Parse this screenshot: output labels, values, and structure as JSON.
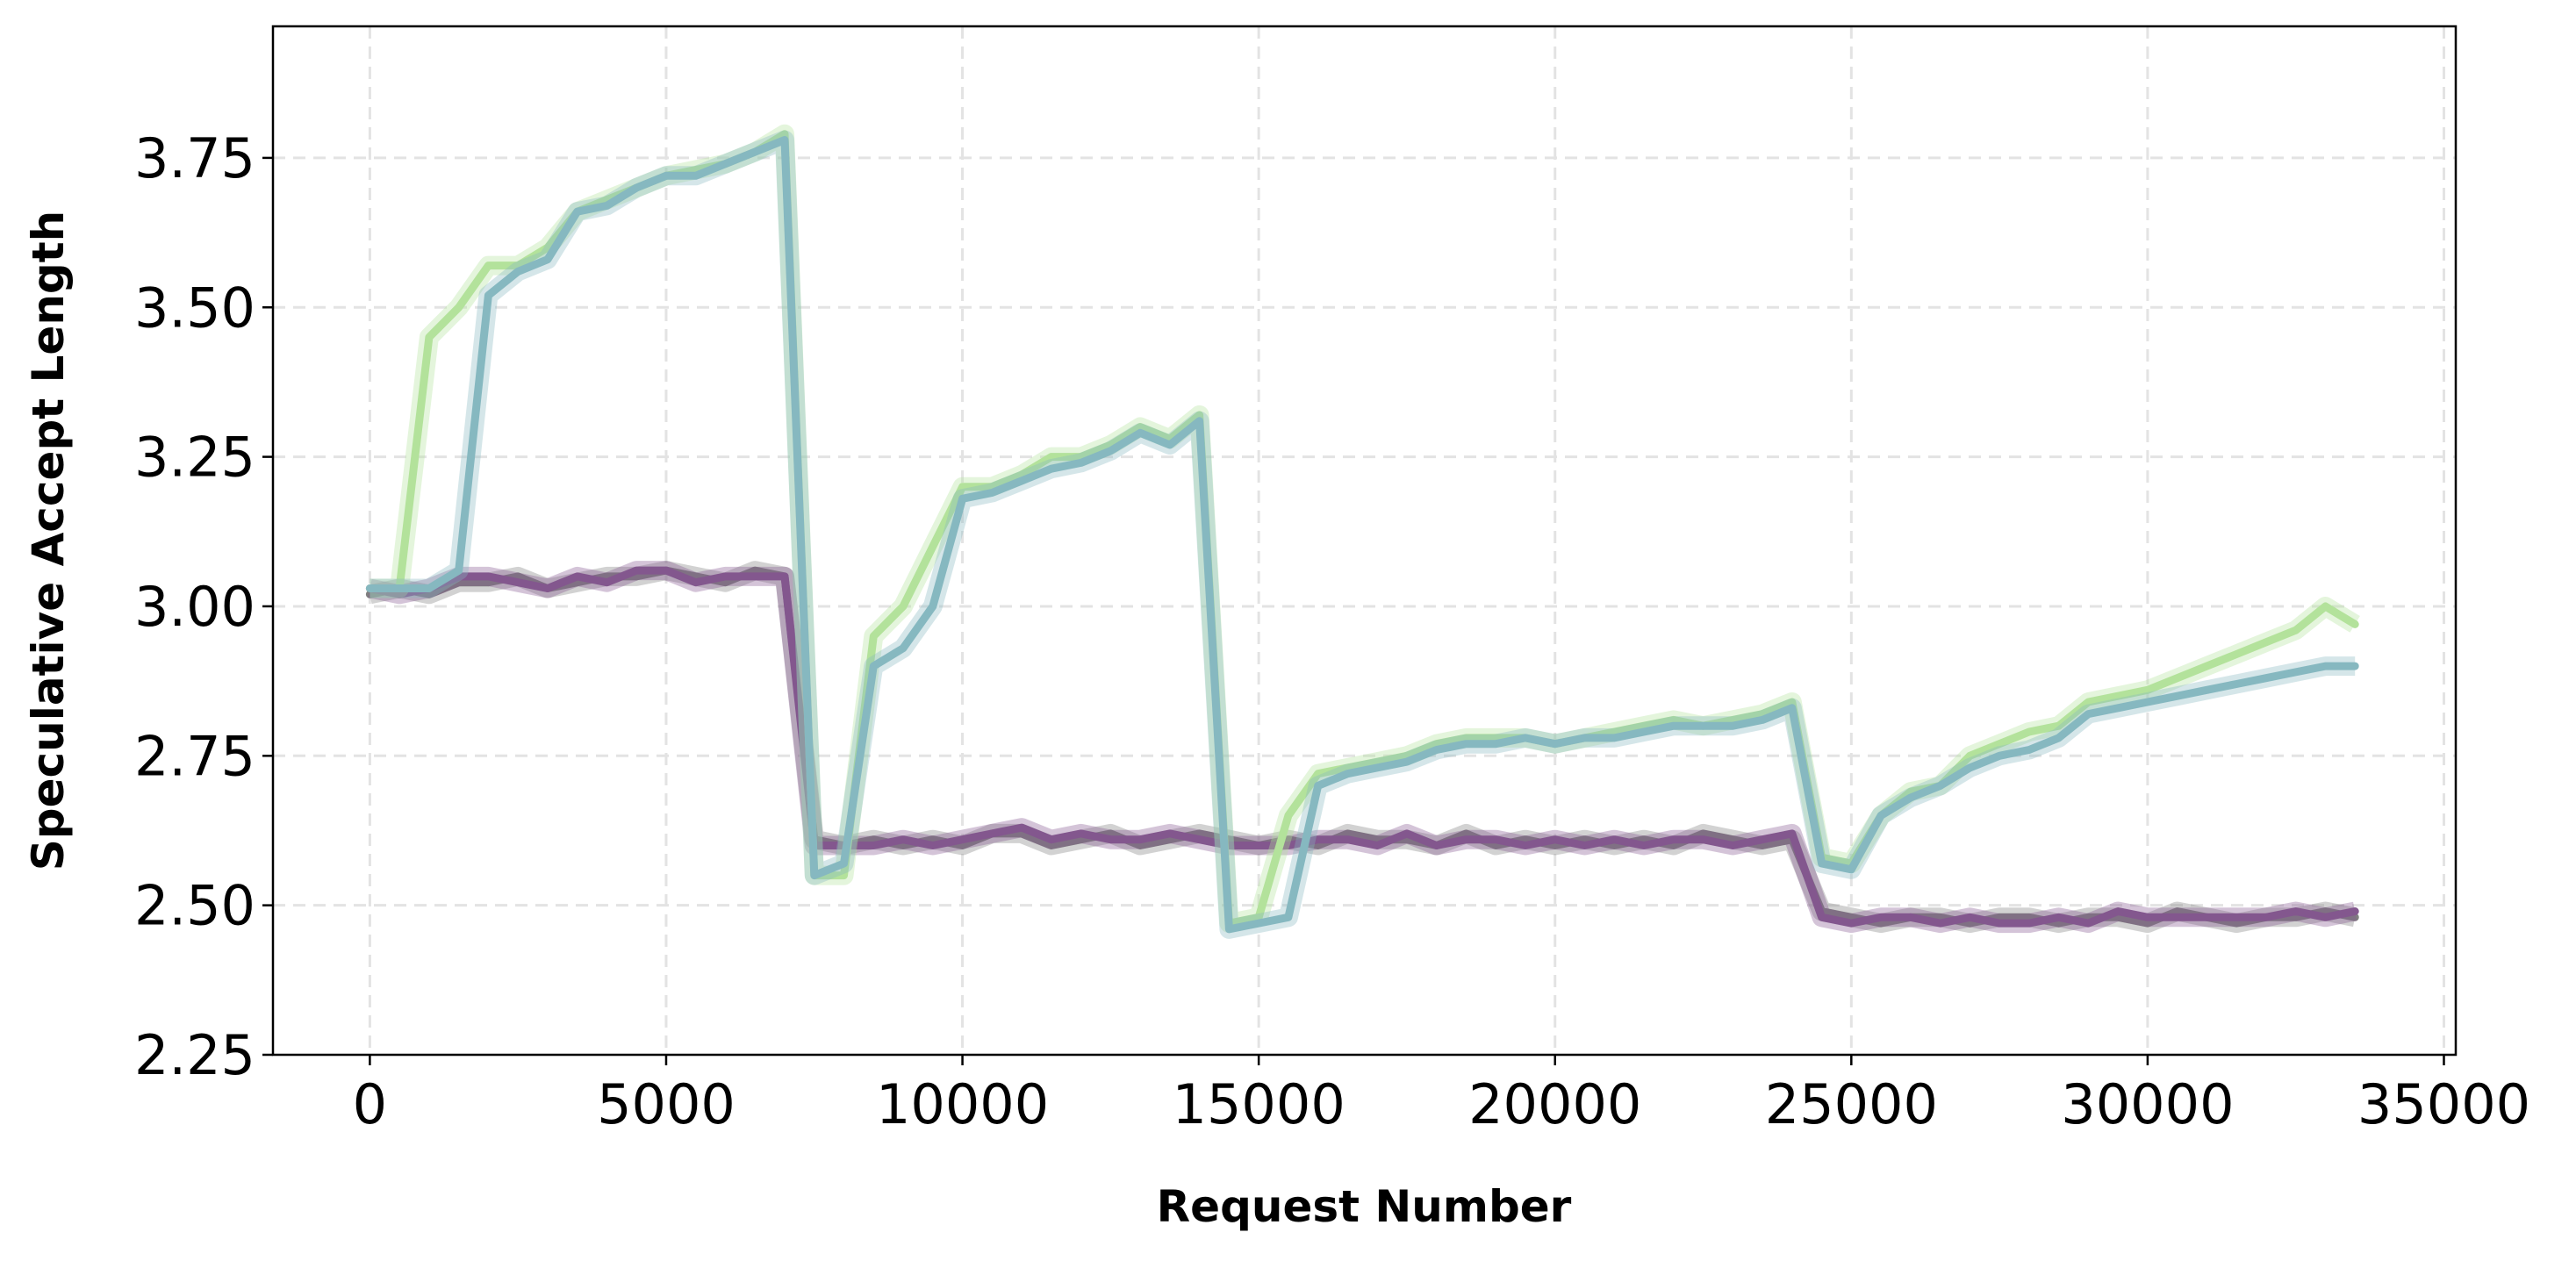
{
  "chart_data": {
    "type": "line",
    "title": "",
    "xlabel": "Request Number",
    "ylabel": "Speculative Accept Length",
    "xlim": [
      -1635,
      35200
    ],
    "ylim": [
      2.25,
      3.97
    ],
    "xticks": [
      0,
      5000,
      10000,
      15000,
      20000,
      25000,
      30000,
      35000
    ],
    "yticks": [
      "2.25",
      "2.50",
      "2.75",
      "3.00",
      "3.25",
      "3.50",
      "3.75"
    ],
    "grid": true,
    "legend": "none",
    "x": [
      0,
      500,
      1000,
      1500,
      2000,
      2500,
      3000,
      3500,
      4000,
      4500,
      5000,
      5500,
      6000,
      6500,
      7000,
      7500,
      8000,
      8500,
      9000,
      9500,
      10000,
      10500,
      11000,
      11500,
      12000,
      12500,
      13000,
      13500,
      14000,
      14500,
      15000,
      15500,
      16000,
      16500,
      17000,
      17500,
      18000,
      18500,
      19000,
      19500,
      20000,
      20500,
      21000,
      21500,
      22000,
      22500,
      23000,
      23500,
      24000,
      24500,
      25000,
      25500,
      26000,
      26500,
      27000,
      27500,
      28000,
      28500,
      29000,
      29500,
      30000,
      30500,
      31000,
      31500,
      32000,
      32500,
      33000,
      33500
    ],
    "series": [
      {
        "color": "#7f7f7f",
        "values": [
          3.02,
          3.03,
          3.02,
          3.04,
          3.04,
          3.05,
          3.03,
          3.04,
          3.05,
          3.05,
          3.06,
          3.05,
          3.04,
          3.06,
          3.05,
          2.61,
          2.6,
          2.61,
          2.6,
          2.61,
          2.6,
          2.62,
          2.62,
          2.6,
          2.61,
          2.62,
          2.6,
          2.61,
          2.62,
          2.61,
          2.6,
          2.61,
          2.6,
          2.62,
          2.61,
          2.61,
          2.6,
          2.62,
          2.6,
          2.61,
          2.6,
          2.61,
          2.6,
          2.61,
          2.6,
          2.62,
          2.61,
          2.6,
          2.61,
          2.49,
          2.48,
          2.47,
          2.48,
          2.48,
          2.47,
          2.48,
          2.48,
          2.47,
          2.48,
          2.48,
          2.47,
          2.49,
          2.48,
          2.47,
          2.48,
          2.48,
          2.49,
          2.48
        ]
      },
      {
        "color": "#83578e",
        "values": [
          3.03,
          3.02,
          3.03,
          3.05,
          3.05,
          3.04,
          3.03,
          3.05,
          3.04,
          3.06,
          3.06,
          3.04,
          3.05,
          3.05,
          3.05,
          2.6,
          2.6,
          2.6,
          2.61,
          2.6,
          2.61,
          2.62,
          2.63,
          2.61,
          2.62,
          2.61,
          2.61,
          2.62,
          2.61,
          2.6,
          2.6,
          2.6,
          2.61,
          2.61,
          2.6,
          2.62,
          2.6,
          2.61,
          2.61,
          2.6,
          2.61,
          2.6,
          2.61,
          2.6,
          2.61,
          2.61,
          2.6,
          2.61,
          2.62,
          2.48,
          2.47,
          2.48,
          2.48,
          2.47,
          2.48,
          2.47,
          2.47,
          2.48,
          2.47,
          2.49,
          2.48,
          2.48,
          2.48,
          2.48,
          2.48,
          2.49,
          2.48,
          2.49
        ]
      },
      {
        "color": "#b3e29b",
        "values": [
          3.03,
          3.03,
          3.45,
          3.5,
          3.57,
          3.57,
          3.6,
          3.66,
          3.68,
          3.7,
          3.72,
          3.73,
          3.74,
          3.76,
          3.79,
          2.55,
          2.55,
          2.95,
          3.0,
          3.1,
          3.2,
          3.2,
          3.22,
          3.25,
          3.25,
          3.27,
          3.3,
          3.28,
          3.32,
          2.47,
          2.48,
          2.65,
          2.72,
          2.73,
          2.74,
          2.75,
          2.77,
          2.78,
          2.78,
          2.78,
          2.77,
          2.78,
          2.79,
          2.8,
          2.81,
          2.8,
          2.81,
          2.82,
          2.84,
          2.58,
          2.57,
          2.65,
          2.69,
          2.7,
          2.75,
          2.77,
          2.79,
          2.8,
          2.84,
          2.85,
          2.86,
          2.88,
          2.9,
          2.92,
          2.94,
          2.96,
          3.0,
          2.97
        ]
      },
      {
        "color": "#86b8c0",
        "values": [
          3.03,
          3.03,
          3.03,
          3.06,
          3.52,
          3.56,
          3.58,
          3.66,
          3.67,
          3.7,
          3.72,
          3.72,
          3.74,
          3.76,
          3.78,
          2.55,
          2.57,
          2.9,
          2.93,
          3.0,
          3.18,
          3.19,
          3.21,
          3.23,
          3.24,
          3.26,
          3.29,
          3.27,
          3.31,
          2.46,
          2.47,
          2.48,
          2.7,
          2.72,
          2.73,
          2.74,
          2.76,
          2.77,
          2.77,
          2.78,
          2.77,
          2.78,
          2.78,
          2.79,
          2.8,
          2.8,
          2.8,
          2.81,
          2.83,
          2.57,
          2.56,
          2.65,
          2.68,
          2.7,
          2.73,
          2.75,
          2.76,
          2.78,
          2.82,
          2.83,
          2.84,
          2.85,
          2.86,
          2.87,
          2.88,
          2.89,
          2.9,
          2.9
        ]
      }
    ]
  }
}
